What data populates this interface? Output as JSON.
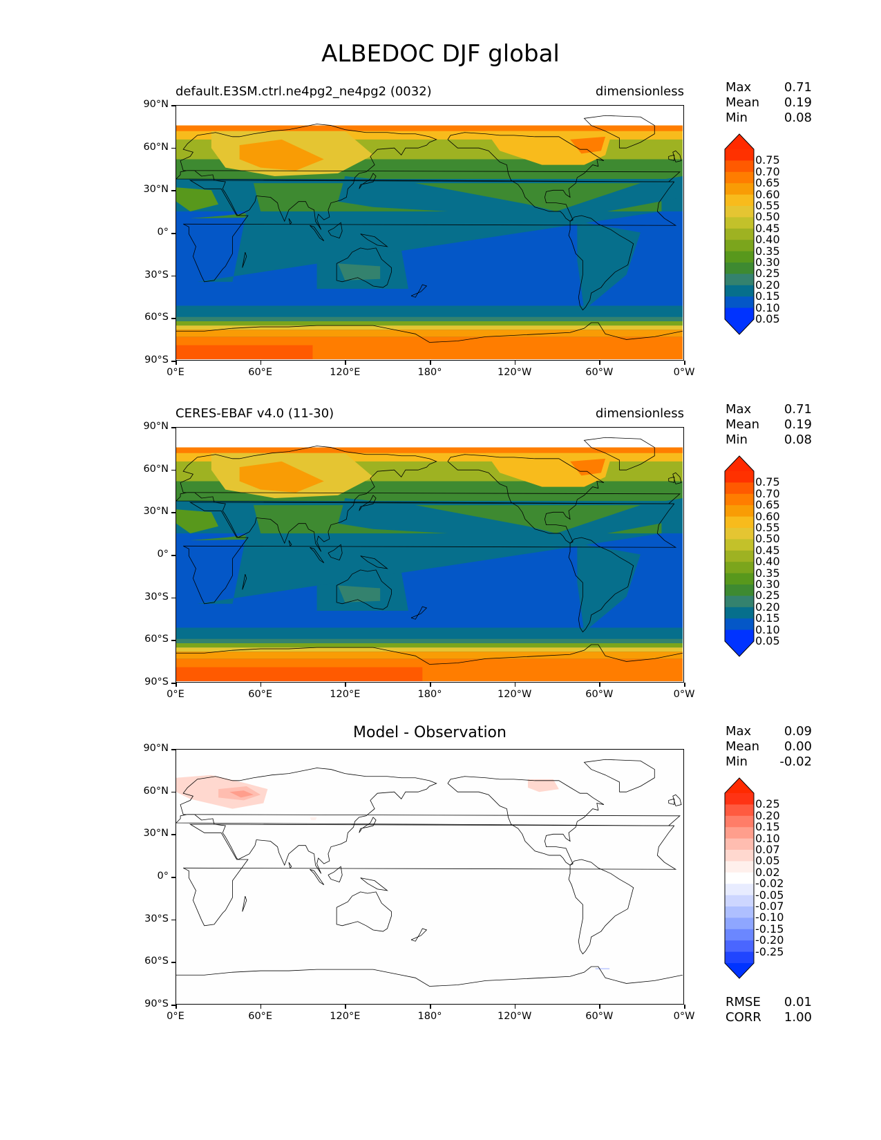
{
  "title": "ALBEDOC DJF global",
  "lat_ticks": [
    "90°N",
    "60°N",
    "30°N",
    "0°",
    "30°S",
    "60°S",
    "90°S"
  ],
  "lon_ticks": [
    "0°E",
    "60°E",
    "120°E",
    "180°",
    "120°W",
    "60°W",
    "0°W"
  ],
  "panels": [
    {
      "left_title": "default.E3SM.ctrl.ne4pg2_ne4pg2 (0032)",
      "right_title": "dimensionless",
      "center_title": "",
      "stats": [
        {
          "label": "Max",
          "value": "0.71"
        },
        {
          "label": "Mean",
          "value": "0.19"
        },
        {
          "label": "Min",
          "value": "0.08"
        }
      ],
      "colorbar_labels": [
        "0.75",
        "0.70",
        "0.65",
        "0.60",
        "0.55",
        "0.50",
        "0.45",
        "0.40",
        "0.35",
        "0.30",
        "0.25",
        "0.20",
        "0.15",
        "0.10",
        "0.05"
      ],
      "colorbar_colors": [
        "#ff3100",
        "#ff5a00",
        "#ff7d00",
        "#f99c05",
        "#f8bb1c",
        "#e5c532",
        "#c3c12a",
        "#9eb222",
        "#7ba51c",
        "#58981c",
        "#3e8a31",
        "#34826e",
        "#066f8c",
        "#0457c7",
        "#0033ff"
      ],
      "colorbar_ends": [
        "#ff2a00",
        "#0033ff"
      ],
      "footer_stats": []
    },
    {
      "left_title": "CERES-EBAF v4.0 (11-30)",
      "right_title": "dimensionless",
      "center_title": "",
      "stats": [
        {
          "label": "Max",
          "value": "0.71"
        },
        {
          "label": "Mean",
          "value": "0.19"
        },
        {
          "label": "Min",
          "value": "0.08"
        }
      ],
      "colorbar_labels": [
        "0.75",
        "0.70",
        "0.65",
        "0.60",
        "0.55",
        "0.50",
        "0.45",
        "0.40",
        "0.35",
        "0.30",
        "0.25",
        "0.20",
        "0.15",
        "0.10",
        "0.05"
      ],
      "colorbar_colors": [
        "#ff3100",
        "#ff5a00",
        "#ff7d00",
        "#f99c05",
        "#f8bb1c",
        "#e5c532",
        "#c3c12a",
        "#9eb222",
        "#7ba51c",
        "#58981c",
        "#3e8a31",
        "#34826e",
        "#066f8c",
        "#0457c7",
        "#0033ff"
      ],
      "colorbar_ends": [
        "#ff2a00",
        "#0033ff"
      ],
      "footer_stats": []
    },
    {
      "left_title": "",
      "right_title": "",
      "center_title": "Model - Observation",
      "stats": [
        {
          "label": "Max",
          "value": "0.09"
        },
        {
          "label": "Mean",
          "value": "0.00"
        },
        {
          "label": "Min",
          "value": "-0.02"
        }
      ],
      "colorbar_labels": [
        "0.25",
        "0.20",
        "0.15",
        "0.10",
        "0.07",
        "0.05",
        "0.02",
        "-0.02",
        "-0.05",
        "-0.07",
        "-0.10",
        "-0.15",
        "-0.20",
        "-0.25"
      ],
      "colorbar_colors": [
        "#ff3314",
        "#ff5a40",
        "#ff7d68",
        "#ff9e8c",
        "#ffbdb0",
        "#ffd8cf",
        "#fff0ec",
        "#ffffff",
        "#e8ecff",
        "#cdd6ff",
        "#aebfff",
        "#8ea6ff",
        "#6b87ff",
        "#4a66ff",
        "#2045ff"
      ],
      "colorbar_ends": [
        "#ff2a00",
        "#0033ff"
      ],
      "footer_stats": [
        {
          "label": "RMSE",
          "value": "0.01"
        },
        {
          "label": "CORR",
          "value": "1.00"
        }
      ]
    }
  ]
}
